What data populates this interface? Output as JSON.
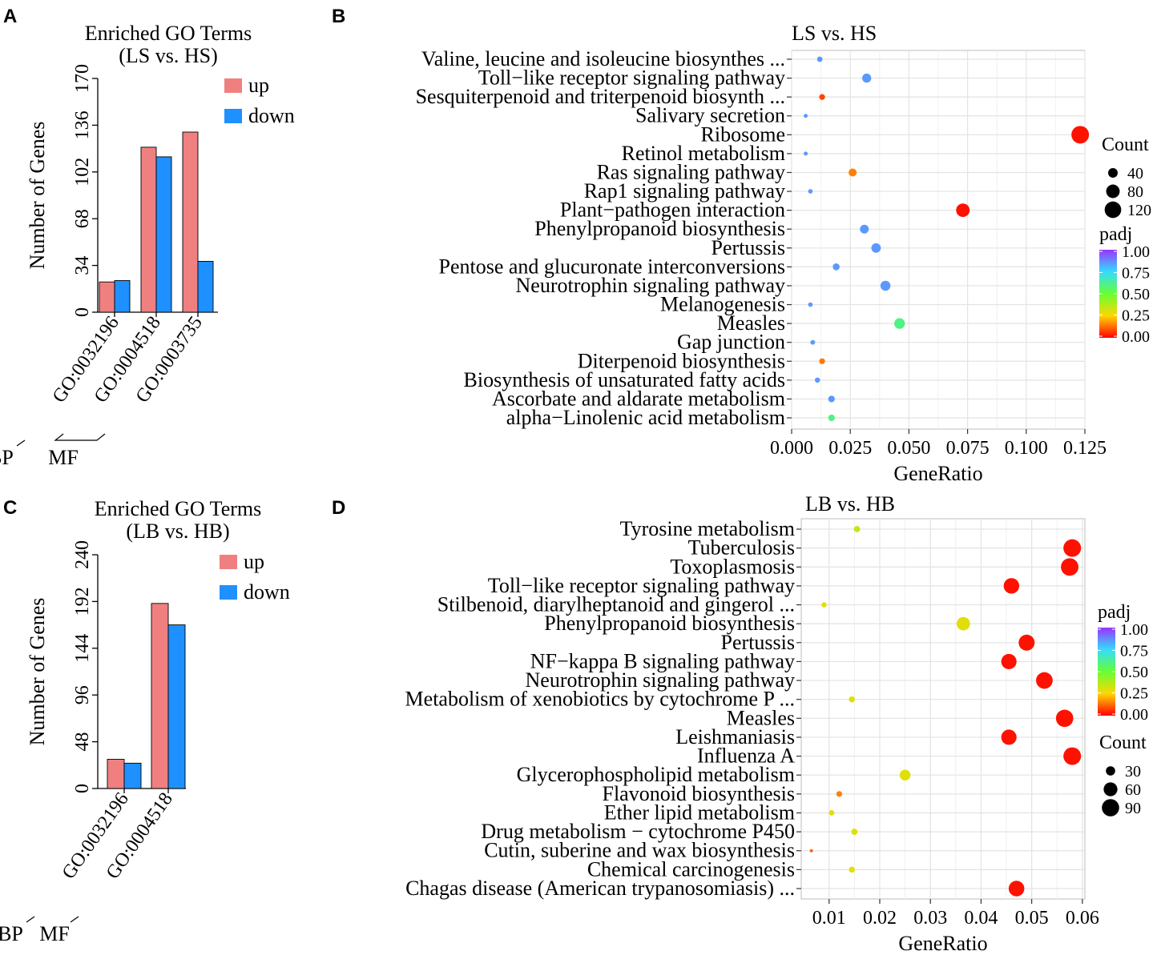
{
  "chart_data": [
    {
      "panel": "A",
      "type": "bar",
      "title": "Enriched GO Terms",
      "subtitle": "(LS vs. HS)",
      "ylabel": "Number of Genes",
      "xlabel": "",
      "ylim": [
        0,
        170
      ],
      "yticks": [
        "0",
        "34",
        "68",
        "102",
        "136",
        "170"
      ],
      "categories": [
        "GO:0032196",
        "GO:0004518",
        "GO:0003735"
      ],
      "groups": [
        {
          "label": "BP",
          "from": 0,
          "to": 0
        },
        {
          "label": "MF",
          "from": 1,
          "to": 2
        }
      ],
      "series": [
        {
          "name": "up",
          "color": "#f08080",
          "values": [
            22,
            120,
            131
          ]
        },
        {
          "name": "down",
          "color": "#1e90ff",
          "values": [
            23,
            113,
            37
          ]
        }
      ]
    },
    {
      "panel": "B",
      "type": "scatter",
      "title": "LS vs. HS",
      "xlabel": "GeneRatio",
      "xlim": [
        0,
        0.125
      ],
      "xticks": [
        "0.000",
        "0.025",
        "0.050",
        "0.075",
        "0.100",
        "0.125"
      ],
      "categories": [
        "Valine, leucine and isoleucine biosynthes ...",
        "Toll−like receptor signaling pathway",
        "Sesquiterpenoid and triterpenoid biosynth ...",
        "Salivary secretion",
        "Ribosome",
        "Retinol metabolism",
        "Ras signaling pathway",
        "Rap1 signaling pathway",
        "Plant−pathogen interaction",
        "Phenylpropanoid biosynthesis",
        "Pertussis",
        "Pentose and glucuronate interconversions",
        "Neurotrophin signaling pathway",
        "Melanogenesis",
        "Measles",
        "Gap junction",
        "Diterpenoid biosynthesis",
        "Biosynthesis of unsaturated fatty acids",
        "Ascorbate and aldarate metabolism",
        "alpha−Linolenic acid metabolism"
      ],
      "gene_ratio": [
        0.012,
        0.032,
        0.013,
        0.006,
        0.123,
        0.006,
        0.026,
        0.008,
        0.073,
        0.031,
        0.036,
        0.019,
        0.04,
        0.008,
        0.046,
        0.009,
        0.013,
        0.011,
        0.017,
        0.017
      ],
      "count": [
        13,
        36,
        15,
        7,
        136,
        7,
        28,
        9,
        80,
        34,
        40,
        21,
        44,
        9,
        50,
        10,
        15,
        12,
        19,
        19
      ],
      "padj": [
        0.85,
        0.85,
        0.08,
        0.85,
        0.02,
        0.85,
        0.15,
        0.85,
        0.02,
        0.85,
        0.85,
        0.85,
        0.85,
        0.85,
        0.6,
        0.85,
        0.14,
        0.85,
        0.85,
        0.6
      ],
      "count_legend": {
        "title": "Count",
        "values": [
          40,
          80,
          120
        ]
      },
      "padj_legend": {
        "title": "padj",
        "ticks": [
          "1.00",
          "0.75",
          "0.50",
          "0.25",
          "0.00"
        ]
      }
    },
    {
      "panel": "C",
      "type": "bar",
      "title": "Enriched GO Terms",
      "subtitle": "(LB vs. HB)",
      "ylabel": "Number of Genes",
      "xlabel": "",
      "ylim": [
        0,
        240
      ],
      "yticks": [
        "0",
        "48",
        "96",
        "144",
        "192",
        "240"
      ],
      "categories": [
        "GO:0032196",
        "GO:0004518"
      ],
      "groups": [
        {
          "label": "BP",
          "from": 0,
          "to": 0
        },
        {
          "label": "MF",
          "from": 1,
          "to": 1
        }
      ],
      "series": [
        {
          "name": "up",
          "color": "#f08080",
          "values": [
            30,
            190
          ]
        },
        {
          "name": "down",
          "color": "#1e90ff",
          "values": [
            26,
            168
          ]
        }
      ]
    },
    {
      "panel": "D",
      "type": "scatter",
      "title": "LB vs. HB",
      "xlabel": "GeneRatio",
      "xlim": [
        0.0045,
        0.0605
      ],
      "xticks": [
        "0.01",
        "0.02",
        "0.03",
        "0.04",
        "0.05",
        "0.06"
      ],
      "xtick_values": [
        0.01,
        0.02,
        0.03,
        0.04,
        0.05,
        0.06
      ],
      "categories": [
        "Tyrosine metabolism",
        "Tuberculosis",
        "Toxoplasmosis",
        "Toll−like receptor signaling pathway",
        "Stilbenoid, diarylheptanoid and gingerol  ...",
        "Phenylpropanoid biosynthesis",
        "Pertussis",
        "NF−kappa B signaling pathway",
        "Neurotrophin signaling pathway",
        "Metabolism of xenobiotics by cytochrome P ...",
        "Measles",
        "Leishmaniasis",
        "Influenza A",
        "Glycerophospholipid metabolism",
        "Flavonoid biosynthesis",
        "Ether lipid metabolism",
        "Drug metabolism − cytochrome P450",
        "Cutin, suberine and wax biosynthesis",
        "Chemical carcinogenesis",
        "Chagas disease (American trypanosomiasis) ..."
      ],
      "gene_ratio": [
        0.0155,
        0.058,
        0.0575,
        0.046,
        0.009,
        0.0365,
        0.049,
        0.0455,
        0.0525,
        0.0145,
        0.0565,
        0.0455,
        0.058,
        0.025,
        0.012,
        0.0105,
        0.015,
        0.0065,
        0.0145,
        0.047
      ],
      "count": [
        16,
        93,
        92,
        74,
        12,
        57,
        78,
        72,
        84,
        15,
        90,
        72,
        93,
        39,
        14,
        13,
        16,
        6,
        15,
        75
      ],
      "padj": [
        0.35,
        0.02,
        0.02,
        0.02,
        0.3,
        0.3,
        0.02,
        0.02,
        0.02,
        0.3,
        0.02,
        0.02,
        0.02,
        0.3,
        0.15,
        0.3,
        0.3,
        0.12,
        0.3,
        0.02
      ],
      "padj_legend": {
        "title": "padj",
        "ticks": [
          "1.00",
          "0.75",
          "0.50",
          "0.25",
          "0.00"
        ]
      },
      "count_legend": {
        "title": "Count",
        "values": [
          30,
          60,
          90
        ]
      }
    }
  ],
  "panel_letters": [
    "A",
    "B",
    "C",
    "D"
  ]
}
